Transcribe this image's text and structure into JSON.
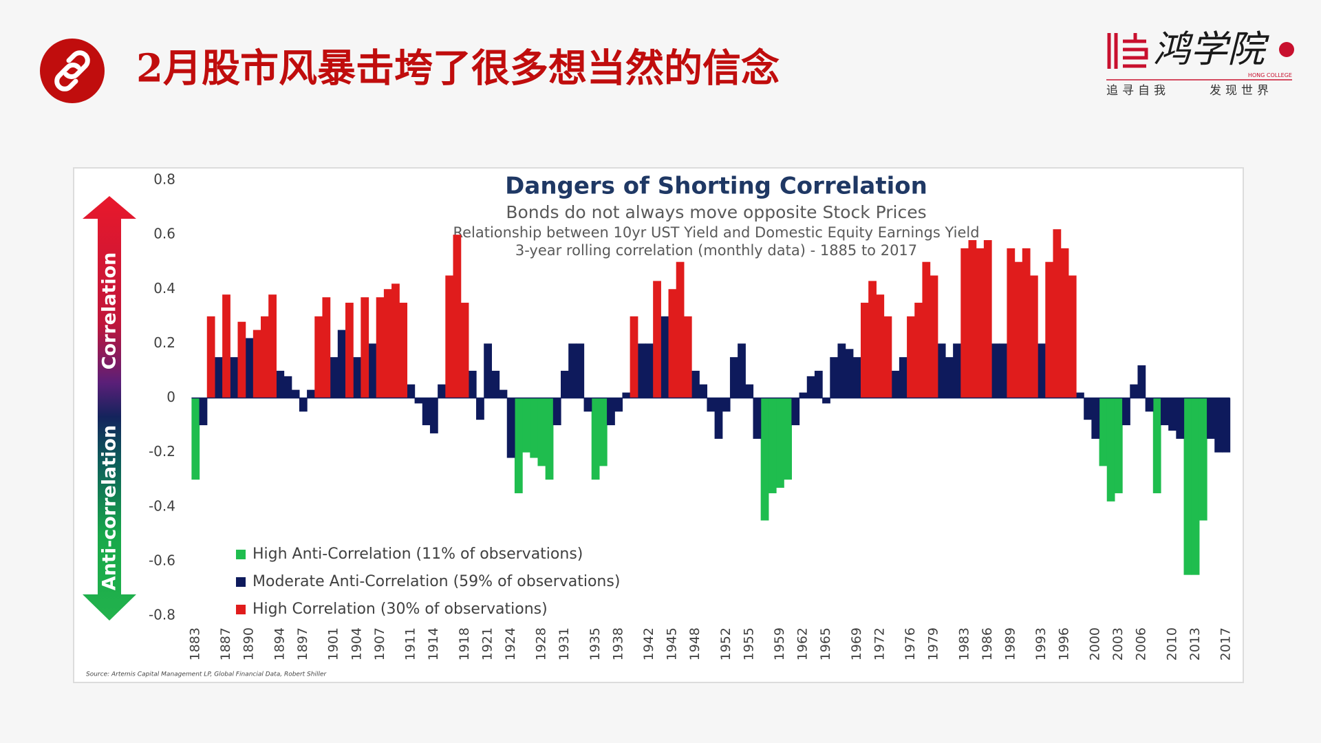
{
  "slide": {
    "title": "2月股市风暴击垮了很多想当然的信念",
    "logo_name": "鸿学院",
    "logo_sub": "HONG COLLEGE",
    "slogan_left": "追寻自我",
    "slogan_right": "发现世界"
  },
  "chart_data": {
    "type": "bar",
    "title": "Dangers of Shorting Correlation",
    "subtitle": "Bonds do not always move opposite Stock Prices",
    "subtitle2": "Relationship between 10yr UST Yield and Domestic Equity Earnings Yield",
    "subtitle3": "3-year rolling correlation (monthly data) - 1885 to 2017",
    "arrow_top_label": "Correlation",
    "arrow_bottom_label": "Anti-correlation",
    "source": "Source: Artemis Capital Management LP, Global Financial Data, Robert Shiller",
    "xlim": [
      1882.5,
      2017.5
    ],
    "xticks": [
      1883,
      1887,
      1890,
      1894,
      1897,
      1901,
      1904,
      1907,
      1911,
      1914,
      1918,
      1921,
      1924,
      1928,
      1931,
      1935,
      1938,
      1942,
      1945,
      1948,
      1952,
      1955,
      1959,
      1962,
      1965,
      1969,
      1972,
      1976,
      1979,
      1983,
      1986,
      1989,
      1993,
      1996,
      2000,
      2003,
      2006,
      2010,
      2013,
      2017
    ],
    "ylim": [
      -0.8,
      0.8
    ],
    "yticks": [
      0.8,
      0.6,
      0.4,
      0.2,
      0,
      -0.2,
      -0.4,
      -0.6,
      -0.8
    ],
    "grid": false,
    "series": [
      {
        "name": "High Anti-Correlation (11% of observations)",
        "color": "#1fbd4e",
        "x": [
          1883,
          1925,
          1926,
          1927,
          1928,
          1929,
          1935,
          1936,
          1957,
          1958,
          1959,
          1960,
          2001,
          2002,
          2003,
          2008,
          2012,
          2013,
          2014
        ],
        "values": [
          -0.3,
          -0.35,
          -0.2,
          -0.22,
          -0.25,
          -0.3,
          -0.3,
          -0.25,
          -0.45,
          -0.35,
          -0.33,
          -0.3,
          -0.25,
          -0.38,
          -0.35,
          -0.35,
          -0.65,
          -0.65,
          -0.45
        ]
      },
      {
        "name": "Moderate Anti-Correlation (59% of observations)",
        "color": "#0e1a5c",
        "x": [
          1884,
          1886,
          1888,
          1890,
          1894,
          1895,
          1896,
          1897,
          1898,
          1901,
          1902,
          1904,
          1906,
          1911,
          1912,
          1913,
          1914,
          1915,
          1919,
          1920,
          1921,
          1922,
          1923,
          1924,
          1930,
          1931,
          1932,
          1933,
          1934,
          1937,
          1938,
          1939,
          1941,
          1942,
          1944,
          1948,
          1949,
          1950,
          1951,
          1952,
          1953,
          1954,
          1955,
          1956,
          1961,
          1962,
          1963,
          1964,
          1965,
          1966,
          1967,
          1968,
          1969,
          1974,
          1975,
          1980,
          1981,
          1982,
          1987,
          1988,
          1993,
          1998,
          1999,
          2000,
          2004,
          2005,
          2006,
          2007,
          2009,
          2010,
          2011,
          2015,
          2016,
          2017
        ],
        "values": [
          -0.1,
          0.15,
          0.15,
          0.22,
          0.1,
          0.08,
          0.03,
          -0.05,
          0.03,
          0.15,
          0.25,
          0.15,
          0.2,
          0.05,
          -0.02,
          -0.1,
          -0.13,
          0.05,
          0.1,
          -0.08,
          0.2,
          0.1,
          0.03,
          -0.22,
          -0.1,
          0.1,
          0.2,
          0.2,
          -0.05,
          -0.1,
          -0.05,
          0.02,
          0.2,
          0.2,
          0.3,
          0.1,
          0.05,
          -0.05,
          -0.15,
          -0.05,
          0.15,
          0.2,
          0.05,
          -0.15,
          -0.1,
          0.02,
          0.08,
          0.1,
          -0.02,
          0.15,
          0.2,
          0.18,
          0.15,
          0.1,
          0.15,
          0.2,
          0.15,
          0.2,
          0.2,
          0.2,
          0.2,
          0.02,
          -0.08,
          -0.15,
          -0.1,
          0.05,
          0.12,
          -0.05,
          -0.1,
          -0.12,
          -0.15,
          -0.15,
          -0.2,
          -0.2
        ]
      },
      {
        "name": "High Correlation (30% of observations)",
        "color": "#e01c1c",
        "x": [
          1885,
          1887,
          1889,
          1891,
          1892,
          1893,
          1899,
          1900,
          1903,
          1905,
          1907,
          1908,
          1909,
          1910,
          1916,
          1917,
          1918,
          1940,
          1943,
          1945,
          1946,
          1947,
          1970,
          1971,
          1972,
          1973,
          1976,
          1977,
          1978,
          1979,
          1983,
          1984,
          1985,
          1986,
          1989,
          1990,
          1991,
          1992,
          1994,
          1995,
          1996,
          1997
        ],
        "values": [
          0.3,
          0.38,
          0.28,
          0.25,
          0.3,
          0.38,
          0.3,
          0.37,
          0.35,
          0.37,
          0.37,
          0.4,
          0.42,
          0.35,
          0.45,
          0.6,
          0.35,
          0.3,
          0.43,
          0.4,
          0.5,
          0.3,
          0.35,
          0.43,
          0.38,
          0.3,
          0.3,
          0.35,
          0.5,
          0.45,
          0.55,
          0.58,
          0.55,
          0.58,
          0.55,
          0.5,
          0.55,
          0.45,
          0.5,
          0.62,
          0.55,
          0.45
        ]
      }
    ]
  }
}
